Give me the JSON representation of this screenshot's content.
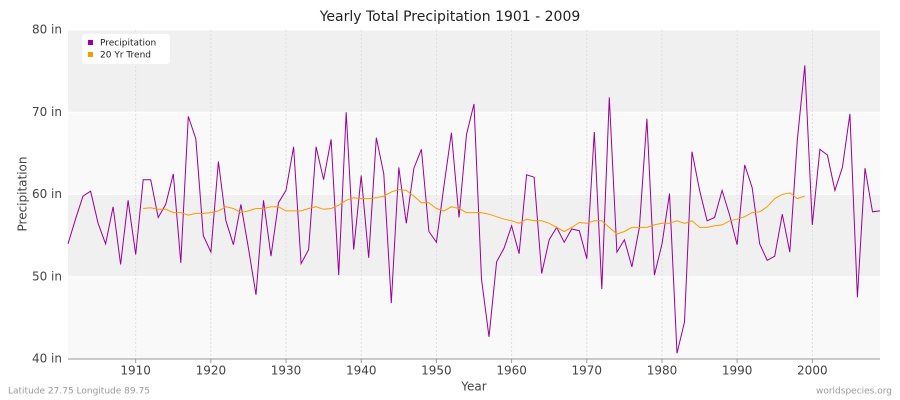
{
  "chart_data": {
    "type": "line",
    "title": "Yearly Total Precipitation 1901 - 2009",
    "x_label": "Year",
    "y_label": "Precipitation",
    "note": "Latitude 27.75 Longitude 89.75",
    "source": "worldspecies.org",
    "x": [
      1901,
      1902,
      1903,
      1904,
      1905,
      1906,
      1907,
      1908,
      1909,
      1910,
      1911,
      1912,
      1913,
      1914,
      1915,
      1916,
      1917,
      1918,
      1919,
      1920,
      1921,
      1922,
      1923,
      1924,
      1925,
      1926,
      1927,
      1928,
      1929,
      1930,
      1931,
      1932,
      1933,
      1934,
      1935,
      1936,
      1937,
      1938,
      1939,
      1940,
      1941,
      1942,
      1943,
      1944,
      1945,
      1946,
      1947,
      1948,
      1949,
      1950,
      1951,
      1952,
      1953,
      1954,
      1955,
      1956,
      1957,
      1958,
      1959,
      1960,
      1961,
      1962,
      1963,
      1964,
      1965,
      1966,
      1967,
      1968,
      1969,
      1970,
      1971,
      1972,
      1973,
      1974,
      1975,
      1976,
      1977,
      1978,
      1979,
      1980,
      1981,
      1982,
      1983,
      1984,
      1985,
      1986,
      1987,
      1988,
      1989,
      1990,
      1991,
      1992,
      1993,
      1994,
      1995,
      1996,
      1997,
      1998,
      1999,
      2000,
      2001,
      2002,
      2003,
      2004,
      2005,
      2006,
      2007,
      2008,
      2009
    ],
    "series": [
      {
        "name": "Precipitation",
        "color": "#990099",
        "values": [
          54,
          57,
          59.8,
          60.4,
          56.5,
          54,
          58.5,
          51.5,
          59.3,
          52.7,
          61.8,
          61.8,
          57.2,
          58.8,
          62.5,
          51.7,
          69.5,
          66.8,
          55,
          53,
          64,
          56.8,
          53.9,
          58.8,
          53.5,
          47.8,
          59.3,
          52.5,
          59,
          60.5,
          65.8,
          51.6,
          53.3,
          65.8,
          61.8,
          66.7,
          50.2,
          70,
          53.3,
          62.3,
          52.3,
          66.9,
          62.5,
          46.8,
          63.3,
          56.5,
          63.2,
          65.5,
          55.5,
          54.2,
          61,
          67.5,
          57.2,
          67.3,
          71,
          49.7,
          42.7,
          51.8,
          53.5,
          56.2,
          52.8,
          62.4,
          62.1,
          50.4,
          54.5,
          56,
          54.2,
          55.8,
          55.6,
          52.2,
          67.6,
          48.5,
          71.8,
          53,
          54.5,
          51.2,
          56,
          69.2,
          50.2,
          54,
          60.1,
          40.7,
          44.5,
          65.2,
          60.5,
          56.8,
          57.2,
          60.5,
          57.5,
          53.9,
          63.6,
          60.8,
          54,
          52,
          52.5,
          57.6,
          53,
          66.6,
          75.7,
          56.3,
          65.5,
          64.8,
          60.5,
          63.3,
          69.8,
          47.5,
          63.2,
          57.9,
          58
        ]
      },
      {
        "name": "20 Yr Trend",
        "color": "#ff9900",
        "values": [
          null,
          null,
          null,
          null,
          null,
          null,
          null,
          null,
          null,
          null,
          58.3,
          58.4,
          58.2,
          58.2,
          57.8,
          57.8,
          57.5,
          57.7,
          57.7,
          57.8,
          58.0,
          58.5,
          58.3,
          57.8,
          58.0,
          58.3,
          58.3,
          58.5,
          58.5,
          58.0,
          58.0,
          58.0,
          58.3,
          58.5,
          58.2,
          58.3,
          58.7,
          59.3,
          59.6,
          59.5,
          59.5,
          59.6,
          59.8,
          60.3,
          60.6,
          60.5,
          59.8,
          59.0,
          59.0,
          58.3,
          58.0,
          58.5,
          58.3,
          57.8,
          57.8,
          57.8,
          57.6,
          57.3,
          57.0,
          56.8,
          56.5,
          57.0,
          56.8,
          56.8,
          56.5,
          56.0,
          55.5,
          56.0,
          56.6,
          56.5,
          56.8,
          56.8,
          56.0,
          55.2,
          55.5,
          56.0,
          56.0,
          56.0,
          56.3,
          56.5,
          56.5,
          56.8,
          56.5,
          56.8,
          56.0,
          56.0,
          56.2,
          56.3,
          56.8,
          57.0,
          57.3,
          57.8,
          57.9,
          58.5,
          59.5,
          60.0,
          60.2,
          59.5,
          59.8,
          null,
          null,
          null,
          null,
          null,
          null,
          null,
          null,
          null,
          null
        ]
      }
    ],
    "xlim": [
      1901,
      2009
    ],
    "xticks": [
      1910,
      1920,
      1930,
      1940,
      1950,
      1960,
      1970,
      1980,
      1990,
      2000
    ],
    "ylim": [
      40,
      80
    ],
    "yticks": [
      {
        "value": 40,
        "label": "40 in"
      },
      {
        "value": 50,
        "label": "50 in"
      },
      {
        "value": 60,
        "label": "60 in"
      },
      {
        "value": 70,
        "label": "70 in"
      },
      {
        "value": 80,
        "label": "80 in"
      }
    ],
    "grid": true,
    "legend": "top-left"
  }
}
